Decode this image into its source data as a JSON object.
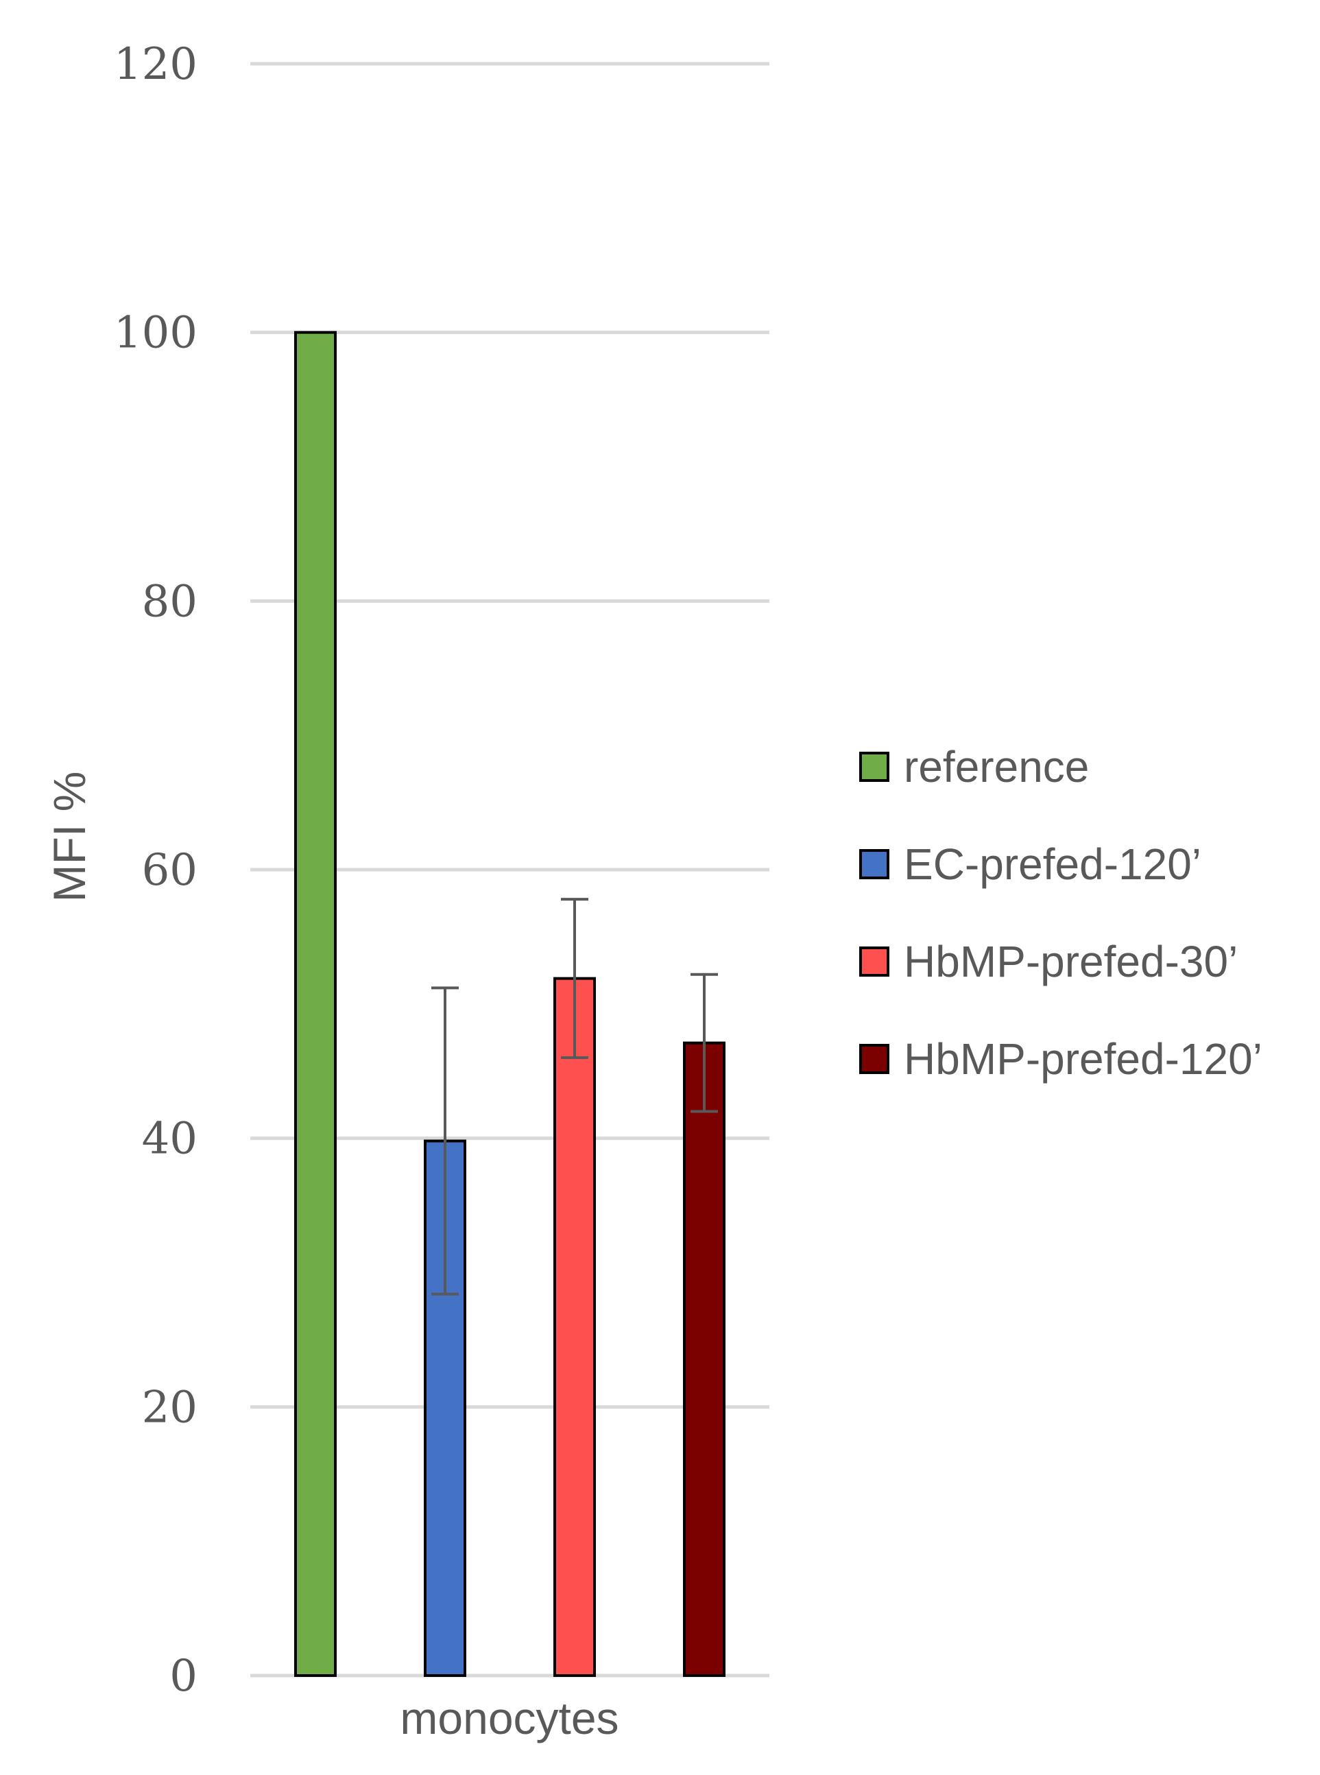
{
  "chart_data": {
    "type": "bar",
    "categories": [
      "monocytes"
    ],
    "ylabel": "MFI %",
    "ylim": [
      0,
      120
    ],
    "yticks": [
      0,
      20,
      40,
      60,
      80,
      100,
      120
    ],
    "grid": true,
    "legend_position": "right",
    "series": [
      {
        "name": "reference",
        "values": [
          100
        ],
        "error": [
          null
        ],
        "color": "#70ad47"
      },
      {
        "name": "EC-prefed-120’",
        "values": [
          39.8
        ],
        "error": [
          11.4
        ],
        "color": "#4472c4"
      },
      {
        "name": "HbMP-prefed-30’",
        "values": [
          51.9
        ],
        "error": [
          5.9
        ],
        "color": "#ff5050"
      },
      {
        "name": "HbMP-prefed-120’",
        "values": [
          47.1
        ],
        "error": [
          5.1
        ],
        "color": "#7b0000"
      }
    ]
  }
}
